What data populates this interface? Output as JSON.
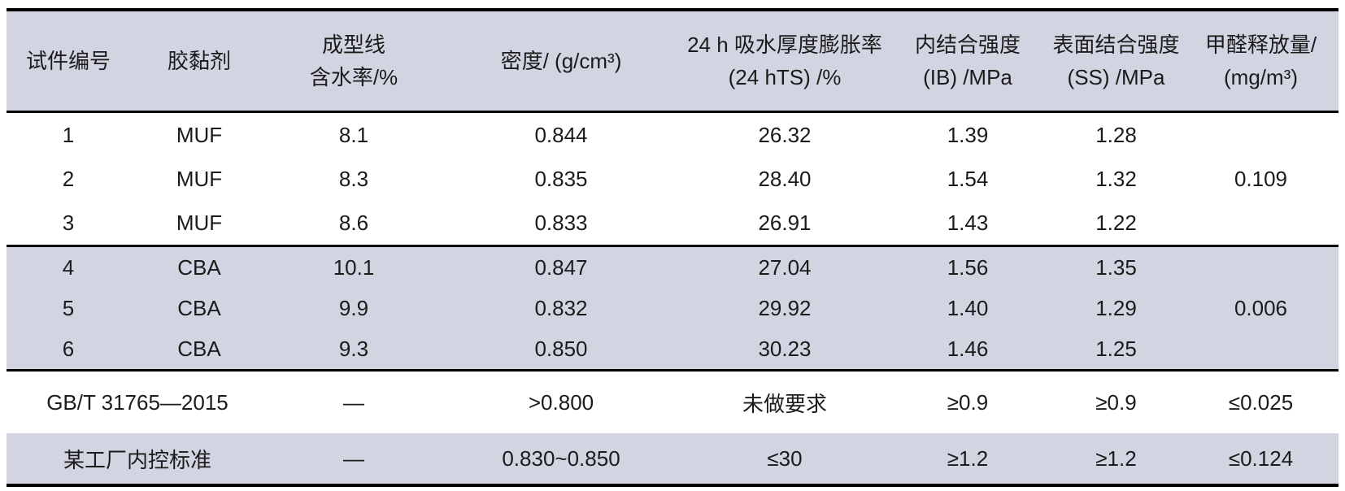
{
  "colors": {
    "band_fill": "#d2d5e1",
    "rule": "#000000",
    "text": "#1b1b1b",
    "page_background": "#ffffff"
  },
  "table": {
    "headers": {
      "specimen_no": "试件编号",
      "adhesive": "胶黏剂",
      "moisture": "成型线\n含水率/%",
      "density": "密度/ (g/cm³)",
      "thickness_swelling": "24 h 吸水厚度膨胀率\n(24 hTS) /%",
      "internal_bond": "内结合强度\n(IB) /MPa",
      "surface_bond": "表面结合强度\n(SS) /MPa",
      "formaldehyde": "甲醛释放量/\n(mg/m³)"
    },
    "rows": [
      {
        "no": "1",
        "adhesive": "MUF",
        "moisture": "8.1",
        "density": "0.844",
        "ts": "26.32",
        "ib": "1.39",
        "ss": "1.28"
      },
      {
        "no": "2",
        "adhesive": "MUF",
        "moisture": "8.3",
        "density": "0.835",
        "ts": "28.40",
        "ib": "1.54",
        "ss": "1.32"
      },
      {
        "no": "3",
        "adhesive": "MUF",
        "moisture": "8.6",
        "density": "0.833",
        "ts": "26.91",
        "ib": "1.43",
        "ss": "1.22"
      },
      {
        "no": "4",
        "adhesive": "CBA",
        "moisture": "10.1",
        "density": "0.847",
        "ts": "27.04",
        "ib": "1.56",
        "ss": "1.35"
      },
      {
        "no": "5",
        "adhesive": "CBA",
        "moisture": "9.9",
        "density": "0.832",
        "ts": "29.92",
        "ib": "1.40",
        "ss": "1.29"
      },
      {
        "no": "6",
        "adhesive": "CBA",
        "moisture": "9.3",
        "density": "0.850",
        "ts": "30.23",
        "ib": "1.46",
        "ss": "1.25"
      }
    ],
    "merged_formaldehyde": {
      "muf_group": "0.109",
      "cba_group": "0.006"
    },
    "standard_rows": [
      {
        "label": "GB/T 31765—2015",
        "moisture": "—",
        "density": ">0.800",
        "ts": "未做要求",
        "ib": "≥0.9",
        "ss": "≥0.9",
        "formaldehyde": "≤0.025"
      },
      {
        "label": "某工厂内控标准",
        "moisture": "—",
        "density": "0.830~0.850",
        "ts": "≤30",
        "ib": "≥1.2",
        "ss": "≥1.2",
        "formaldehyde": "≤0.124"
      }
    ]
  }
}
